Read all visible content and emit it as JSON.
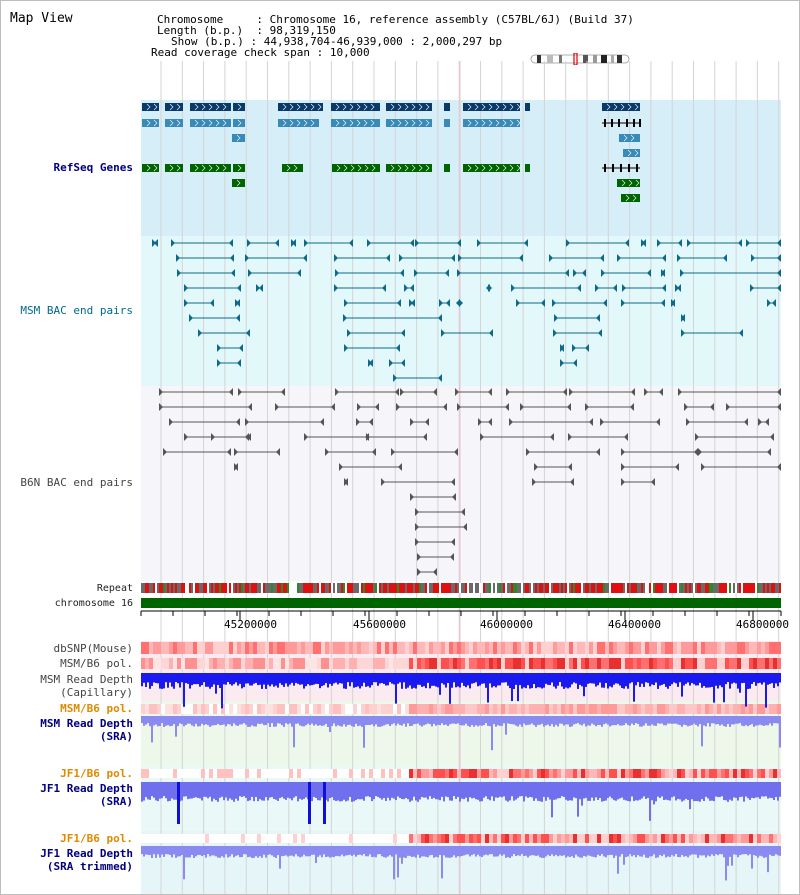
{
  "page": {
    "title": "Map View"
  },
  "info": {
    "chromosome_label": "Chromosome",
    "chromosome_value": "Chromosome 16, reference assembly (C57BL/6J) (Build 37)",
    "length_label": "Length (b.p.)",
    "length_value": "98,319,150",
    "show_label": "Show (b.p.)",
    "show_value": "44,938,704-46,939,000 : 2,000,297 bp",
    "coverage_label": "Read coverage check span",
    "coverage_value": "10,000"
  },
  "tracks": {
    "refseq": "RefSeq Genes",
    "msm_bac": "MSM BAC end pairs",
    "b6n_bac": "B6N BAC end pairs",
    "repeat": "Repeat",
    "chromosome": "chromosome 16",
    "dbsnp": "dbSNP(Mouse)",
    "msm_b6_pol": "MSM/B6 pol.",
    "msm_depth_cap_1": "MSM Read Depth",
    "msm_depth_cap_2": "(Capillary)",
    "msm_b6_pol_2": "MSM/B6 pol.",
    "msm_depth_sra_1": "MSM Read Depth",
    "msm_depth_sra_2": "(SRA)",
    "jf1_b6_pol": "JF1/B6 pol.",
    "jf1_depth_sra_1": "JF1 Read Depth",
    "jf1_depth_sra_2": "(SRA)",
    "jf1_b6_pol_2": "JF1/B6 pol.",
    "jf1_depth_trim_1": "JF1 Read Depth",
    "jf1_depth_trim_2": "(SRA trimmed)"
  },
  "ruler": {
    "ticks": [
      "45200000",
      "45600000",
      "46000000",
      "46400000",
      "46800000"
    ]
  },
  "colors": {
    "refseq_bg": "#d6eef8",
    "msm_bg": "#e3f8fb",
    "b6n_bg": "#f6f6fa",
    "gene_navy": "#0a3a6a",
    "gene_blue": "#3a8ab8",
    "gene_green": "#006400",
    "bac_teal": "#0d6a8a",
    "bac_gray": "#555555",
    "depth_blue": "#1a1aee",
    "depth_light": "#8a8af0"
  }
}
